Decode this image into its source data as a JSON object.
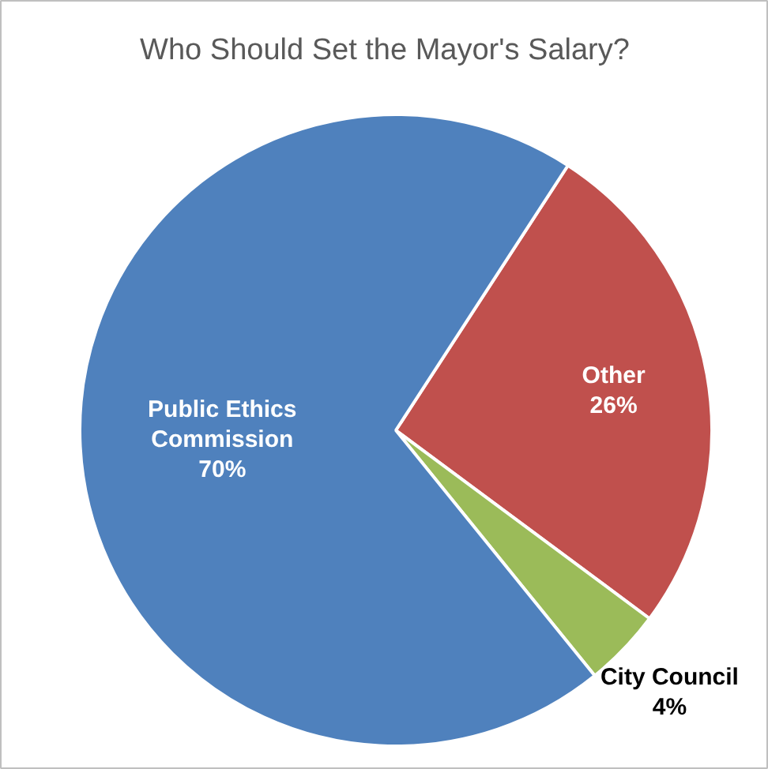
{
  "chart_data": {
    "type": "pie",
    "title": "Who Should Set the Mayor's Salary?",
    "categories": [
      "Other",
      "City Council",
      "Public Ethics Commission"
    ],
    "values": [
      26,
      4,
      70
    ],
    "colors": [
      "#c0504d",
      "#9bbb59",
      "#4f81bd"
    ],
    "value_labels": [
      "26%",
      "4%",
      "70%"
    ]
  }
}
